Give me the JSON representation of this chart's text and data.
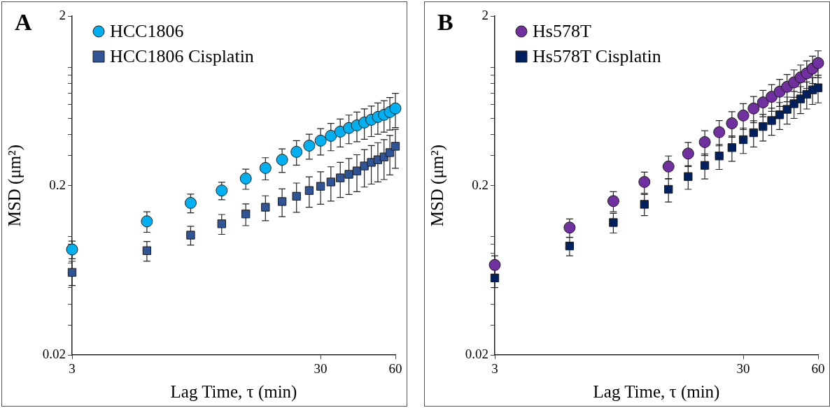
{
  "chart_data": [
    {
      "type": "scatter",
      "title": "A",
      "xlabel": "Lag Time, τ (min)",
      "ylabel": "MSD (μm²)",
      "log": "xy",
      "legend": "top left",
      "grid": false,
      "x": [
        3,
        6,
        9,
        12,
        15,
        18,
        21,
        24,
        27,
        30,
        33,
        36,
        39,
        42,
        45,
        48,
        51,
        54,
        57,
        60
      ],
      "xlim": [
        3,
        60
      ],
      "xticks": [
        3,
        30,
        60
      ],
      "ylim": [
        0.02,
        2
      ],
      "yticks": [
        0.02,
        {
          "value": 0.03,
          "label": null
        },
        {
          "value": 0.04,
          "label": null
        },
        {
          "value": 0.05,
          "label": null
        },
        {
          "value": 0.06,
          "label": null
        },
        {
          "value": 0.07,
          "label": null
        },
        {
          "value": 0.08,
          "label": null
        },
        {
          "value": 0.09,
          "label": null
        },
        {
          "value": 0.1,
          "label": null
        },
        0.2,
        {
          "value": 0.3,
          "label": null
        },
        {
          "value": 0.4,
          "label": null
        },
        {
          "value": 0.5,
          "label": null
        },
        {
          "value": 0.6,
          "label": null
        },
        {
          "value": 0.7,
          "label": null
        },
        {
          "value": 0.8,
          "label": null
        },
        {
          "value": 0.9,
          "label": null
        },
        {
          "value": 1,
          "label": null
        },
        2
      ],
      "series": [
        {
          "name": "HCC1806",
          "color": "#00b0f0",
          "marker": "circle",
          "values": [
            0.084,
            0.123,
            0.158,
            0.187,
            0.22,
            0.254,
            0.284,
            0.316,
            0.344,
            0.368,
            0.393,
            0.416,
            0.437,
            0.453,
            0.471,
            0.489,
            0.508,
            0.523,
            0.543,
            0.57
          ],
          "errors": [
            0.01,
            0.017,
            0.02,
            0.022,
            0.03,
            0.038,
            0.045,
            0.052,
            0.058,
            0.065,
            0.072,
            0.078,
            0.084,
            0.09,
            0.096,
            0.1,
            0.106,
            0.11,
            0.118,
            0.13
          ]
        },
        {
          "name": "HCC1806 Cisplatin",
          "color": "#2f5597",
          "marker": "square",
          "values": [
            0.0615,
            0.0826,
            0.102,
            0.119,
            0.136,
            0.149,
            0.161,
            0.173,
            0.187,
            0.198,
            0.21,
            0.222,
            0.233,
            0.244,
            0.261,
            0.274,
            0.284,
            0.295,
            0.313,
            0.341
          ],
          "errors": [
            0.01,
            0.011,
            0.013,
            0.016,
            0.02,
            0.025,
            0.03,
            0.034,
            0.038,
            0.043,
            0.048,
            0.052,
            0.056,
            0.06,
            0.065,
            0.07,
            0.074,
            0.078,
            0.082,
            0.088
          ]
        }
      ]
    },
    {
      "type": "scatter",
      "title": "B",
      "xlabel": "Lag Time, τ (min)",
      "ylabel": "MSD (μm²)",
      "log": "xy",
      "legend": "top left",
      "grid": false,
      "x": [
        3,
        6,
        9,
        12,
        15,
        18,
        21,
        24,
        27,
        30,
        33,
        36,
        39,
        42,
        45,
        48,
        51,
        54,
        57,
        60
      ],
      "xlim": [
        3,
        60
      ],
      "xticks": [
        3,
        30,
        60
      ],
      "ylim": [
        0.02,
        2
      ],
      "yticks": [
        0.02,
        {
          "value": 0.03,
          "label": null
        },
        {
          "value": 0.04,
          "label": null
        },
        {
          "value": 0.05,
          "label": null
        },
        {
          "value": 0.06,
          "label": null
        },
        {
          "value": 0.07,
          "label": null
        },
        {
          "value": 0.08,
          "label": null
        },
        {
          "value": 0.09,
          "label": null
        },
        {
          "value": 0.1,
          "label": null
        },
        0.2,
        {
          "value": 0.3,
          "label": null
        },
        {
          "value": 0.4,
          "label": null
        },
        {
          "value": 0.5,
          "label": null
        },
        {
          "value": 0.6,
          "label": null
        },
        {
          "value": 0.7,
          "label": null
        },
        {
          "value": 0.8,
          "label": null
        },
        {
          "value": 0.9,
          "label": null
        },
        {
          "value": 1,
          "label": null
        },
        2
      ],
      "series": [
        {
          "name": "Hs578T",
          "color": "#7030a0",
          "marker": "circle",
          "values": [
            0.068,
            0.113,
            0.162,
            0.21,
            0.259,
            0.309,
            0.361,
            0.413,
            0.466,
            0.518,
            0.57,
            0.619,
            0.668,
            0.716,
            0.765,
            0.813,
            0.869,
            0.919,
            0.98,
            1.057
          ],
          "errors": [
            0.009,
            0.014,
            0.022,
            0.03,
            0.04,
            0.05,
            0.06,
            0.07,
            0.08,
            0.09,
            0.1,
            0.11,
            0.12,
            0.13,
            0.14,
            0.15,
            0.16,
            0.17,
            0.18,
            0.19
          ]
        },
        {
          "name": "Hs578T Cisplatin",
          "color": "#002060",
          "marker": "square",
          "values": [
            0.057,
            0.088,
            0.121,
            0.155,
            0.19,
            0.226,
            0.263,
            0.299,
            0.335,
            0.373,
            0.41,
            0.446,
            0.484,
            0.523,
            0.563,
            0.608,
            0.649,
            0.691,
            0.734,
            0.755
          ],
          "errors": [
            0.007,
            0.011,
            0.016,
            0.022,
            0.03,
            0.036,
            0.044,
            0.05,
            0.057,
            0.064,
            0.072,
            0.08,
            0.088,
            0.095,
            0.102,
            0.11,
            0.118,
            0.125,
            0.132,
            0.14
          ]
        }
      ]
    }
  ]
}
